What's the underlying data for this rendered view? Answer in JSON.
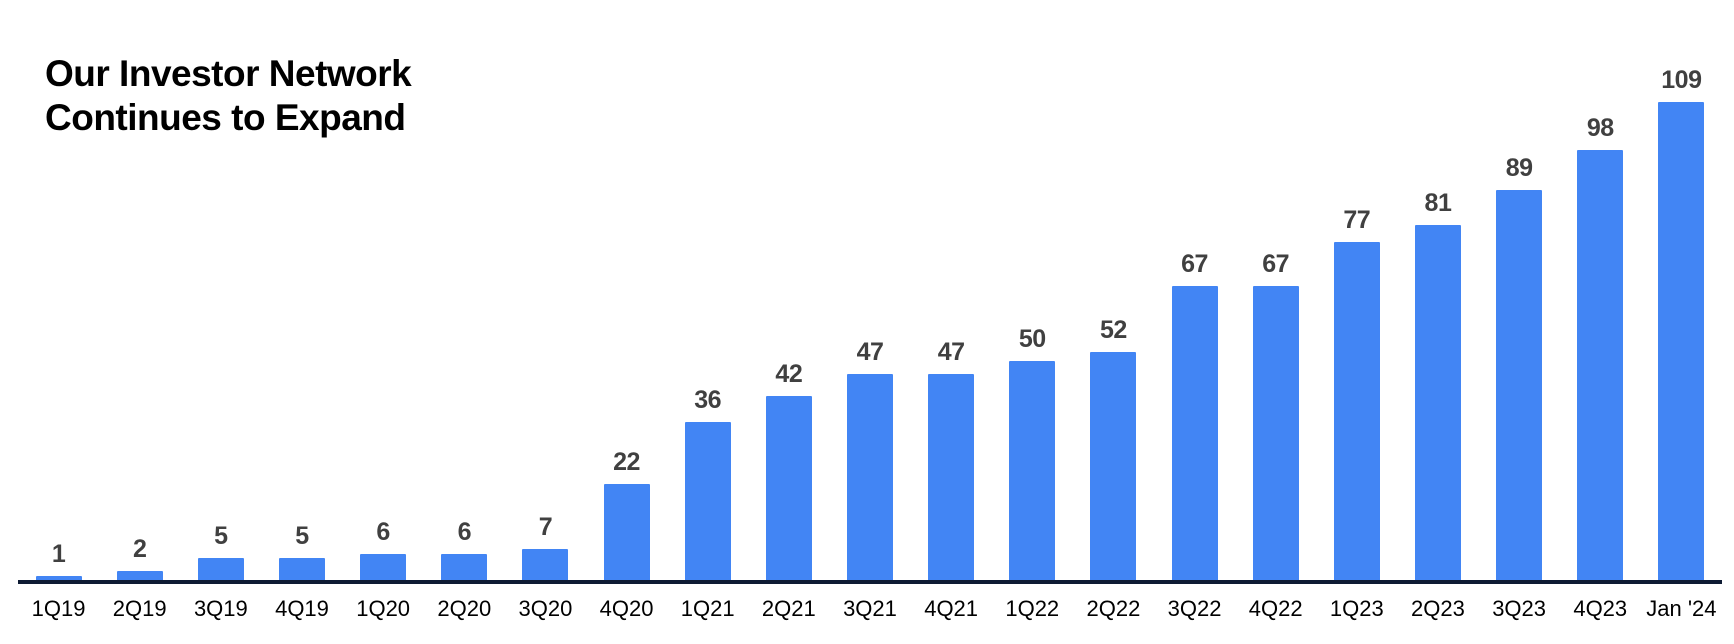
{
  "title": {
    "line1": "Our Investor Network",
    "line2": "Continues to Expand"
  },
  "chart_data": {
    "type": "bar",
    "title": "Our Investor Network Continues to Expand",
    "categories": [
      "1Q19",
      "2Q19",
      "3Q19",
      "4Q19",
      "1Q20",
      "2Q20",
      "3Q20",
      "4Q20",
      "1Q21",
      "2Q21",
      "3Q21",
      "4Q21",
      "1Q22",
      "2Q22",
      "3Q22",
      "4Q22",
      "1Q23",
      "2Q23",
      "3Q23",
      "4Q23",
      "Jan '24"
    ],
    "values": [
      1,
      2,
      5,
      5,
      6,
      6,
      7,
      22,
      36,
      42,
      47,
      47,
      50,
      52,
      67,
      67,
      77,
      81,
      89,
      98,
      109
    ],
    "xlabel": "",
    "ylabel": "",
    "ylim": [
      0,
      109
    ],
    "grid": false,
    "legend": false,
    "data_labels": true,
    "colors": {
      "bar": "#4285F4",
      "value_label": "#404040",
      "tick_label": "#000000",
      "axis_line": "#0E1B33",
      "title": "#000000",
      "background": "#FFFFFF"
    }
  }
}
